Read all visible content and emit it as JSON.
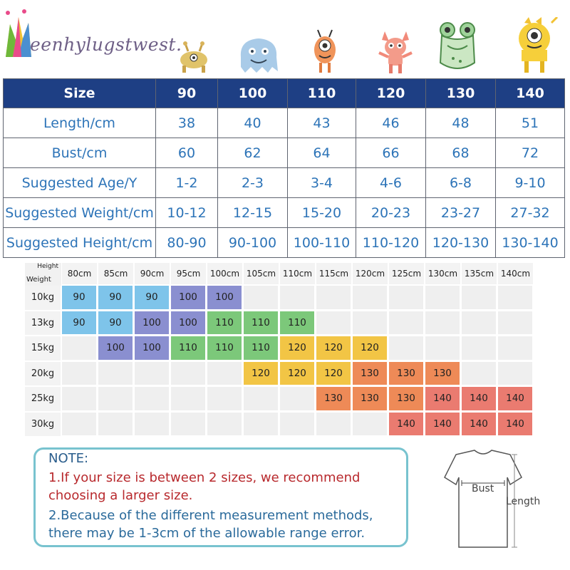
{
  "brand": {
    "name": "eenhylugstwest."
  },
  "size_table": {
    "header": {
      "label": "Size",
      "sizes": [
        "90",
        "100",
        "110",
        "120",
        "130",
        "140"
      ]
    },
    "rows": [
      {
        "label": "Length/cm",
        "values": [
          "38",
          "40",
          "43",
          "46",
          "48",
          "51"
        ]
      },
      {
        "label": "Bust/cm",
        "values": [
          "60",
          "62",
          "64",
          "66",
          "68",
          "72"
        ]
      },
      {
        "label": "Suggested Age/Y",
        "values": [
          "1-2",
          "2-3",
          "3-4",
          "4-6",
          "6-8",
          "9-10"
        ]
      },
      {
        "label": "Suggested Weight/cm",
        "values": [
          "10-12",
          "12-15",
          "15-20",
          "20-23",
          "23-27",
          "27-32"
        ]
      },
      {
        "label": "Suggested Height/cm",
        "values": [
          "80-90",
          "90-100",
          "100-110",
          "110-120",
          "120-130",
          "130-140"
        ]
      }
    ]
  },
  "fit_grid": {
    "corner": {
      "height_label": "Height",
      "weight_label": "Weight"
    },
    "heights": [
      "80cm",
      "85cm",
      "90cm",
      "95cm",
      "100cm",
      "105cm",
      "110cm",
      "115cm",
      "120cm",
      "125cm",
      "130cm",
      "135cm",
      "140cm"
    ],
    "weights": [
      "10kg",
      "13kg",
      "15kg",
      "20kg",
      "25kg",
      "30kg"
    ],
    "cells": [
      [
        "90",
        "90",
        "90",
        "100",
        "100",
        "",
        "",
        "",
        "",
        "",
        "",
        "",
        ""
      ],
      [
        "90",
        "90",
        "100",
        "100",
        "110",
        "110",
        "110",
        "",
        "",
        "",
        "",
        "",
        ""
      ],
      [
        "",
        "100",
        "100",
        "110",
        "110",
        "110",
        "120",
        "120",
        "120",
        "",
        "",
        "",
        ""
      ],
      [
        "",
        "",
        "",
        "",
        "",
        "120",
        "120",
        "120",
        "130",
        "130",
        "130",
        "",
        ""
      ],
      [
        "",
        "",
        "",
        "",
        "",
        "",
        "",
        "130",
        "130",
        "130",
        "140",
        "140",
        "140"
      ],
      [
        "",
        "",
        "",
        "",
        "",
        "",
        "",
        "",
        "",
        "140",
        "140",
        "140",
        "140"
      ]
    ],
    "size_colors": {
      "90": "#7ec4ea",
      "100": "#8a8fd0",
      "110": "#7cc87a",
      "120": "#f2c545",
      "130": "#ee8a57",
      "140": "#ea7b70"
    }
  },
  "note": {
    "title": "NOTE:",
    "line1a": "1.If your size is between 2 sizes, we recommend",
    "line1b": "choosing a larger size.",
    "line2a": "2.Because of the different measurement methods,",
    "line2b": "there may be 1-3cm of the allowable range error."
  },
  "diagram": {
    "bust_label": "Bust",
    "length_label": "Length"
  },
  "icons": [
    "crown-logo-icon",
    "crab-monster-icon",
    "blob-monster-icon",
    "one-eye-monster-icon",
    "horned-monster-icon",
    "frog-monster-icon",
    "cyclops-monster-icon",
    "tshirt-icon"
  ]
}
